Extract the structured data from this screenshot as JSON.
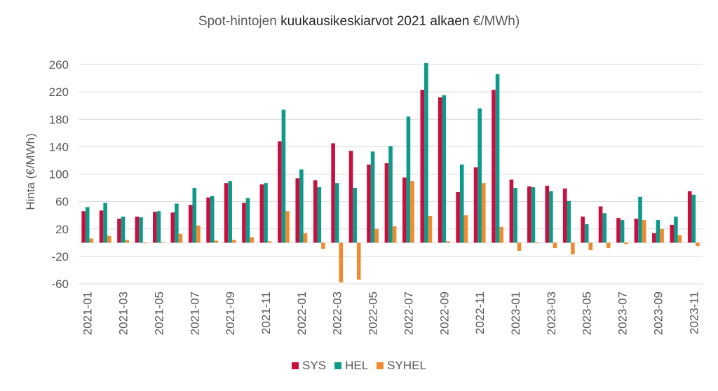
{
  "title_prefix": "Spot-hintojen ",
  "title_main": "kuukausikeskiarvot 2021 alkaen ",
  "title_suffix": "€/MWh)",
  "chart_data": {
    "type": "bar",
    "title": "Spot-hintojen kuukausikeskiarvot 2021 alkaen €/MWh)",
    "ylabel": "Hinta (€/MWh)",
    "xlabel": "",
    "ylim": [
      -60,
      260
    ],
    "yticks": [
      260,
      220,
      180,
      140,
      100,
      60,
      20,
      -20,
      -60
    ],
    "grid": true,
    "legend_position": "bottom",
    "categories": [
      "2021-01",
      "2021-02",
      "2021-03",
      "2021-04",
      "2021-05",
      "2021-06",
      "2021-07",
      "2021-08",
      "2021-09",
      "2021-10",
      "2021-11",
      "2021-12",
      "2022-01",
      "2022-02",
      "2022-03",
      "2022-04",
      "2022-05",
      "2022-06",
      "2022-07",
      "2022-08",
      "2022-09",
      "2022-10",
      "2022-11",
      "2022-12",
      "2023-01",
      "2023-02",
      "2023-03",
      "2023-04",
      "2023-05",
      "2023-06",
      "2023-07",
      "2023-08",
      "2023-09",
      "2023-10",
      "2023-11"
    ],
    "tick_labels": [
      "2021-01",
      "2021-03",
      "2021-05",
      "2021-07",
      "2021-09",
      "2021-11",
      "2022-01",
      "2022-03",
      "2022-05",
      "2022-07",
      "2022-09",
      "2022-11",
      "2023-01",
      "2023-03",
      "2023-05",
      "2023-07",
      "2023-09",
      "2023-11"
    ],
    "series": [
      {
        "name": "SYS",
        "color": "#c8103f",
        "values": [
          46,
          47,
          35,
          38,
          45,
          44,
          55,
          66,
          87,
          58,
          85,
          148,
          94,
          91,
          145,
          134,
          114,
          116,
          95,
          223,
          212,
          74,
          110,
          223,
          92,
          82,
          83,
          79,
          38,
          53,
          36,
          35,
          14,
          26,
          75
        ]
      },
      {
        "name": "HEL",
        "color": "#0e9a8a",
        "values": [
          52,
          58,
          38,
          37,
          46,
          57,
          80,
          68,
          90,
          65,
          87,
          194,
          107,
          81,
          87,
          80,
          133,
          141,
          184,
          262,
          215,
          114,
          196,
          246,
          80,
          81,
          75,
          61,
          27,
          43,
          33,
          67,
          33,
          38,
          70
        ]
      },
      {
        "name": "SYHEL",
        "color": "#ef8a2f",
        "values": [
          6,
          10,
          4,
          -1,
          1,
          13,
          25,
          3,
          4,
          8,
          2,
          46,
          14,
          -9,
          -58,
          -54,
          20,
          24,
          90,
          39,
          2,
          40,
          87,
          23,
          -12,
          -1,
          -8,
          -17,
          -11,
          -8,
          -2,
          33,
          20,
          11,
          -5
        ]
      }
    ]
  }
}
